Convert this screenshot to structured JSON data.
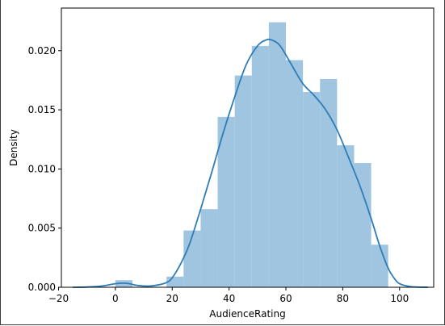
{
  "chart_data": {
    "type": "histogram",
    "xlabel": "AudienceRating",
    "ylabel": "Density",
    "xlim": [
      -19,
      112
    ],
    "ylim": [
      0,
      0.0236
    ],
    "xticks": [
      -20,
      0,
      20,
      40,
      60,
      80,
      100
    ],
    "xtick_labels": [
      "−20",
      "0",
      "20",
      "40",
      "60",
      "80",
      "100"
    ],
    "yticks": [
      0.0,
      0.005,
      0.01,
      0.015,
      0.02
    ],
    "ytick_labels": [
      "0.000",
      "0.005",
      "0.010",
      "0.015",
      "0.020"
    ],
    "grid": false,
    "bars": [
      {
        "x0": 0,
        "x1": 6,
        "density": 0.0006
      },
      {
        "x0": 6,
        "x1": 18,
        "density": 0.0
      },
      {
        "x0": 18,
        "x1": 24,
        "density": 0.0009
      },
      {
        "x0": 24,
        "x1": 30,
        "density": 0.0048
      },
      {
        "x0": 30,
        "x1": 36,
        "density": 0.0066
      },
      {
        "x0": 36,
        "x1": 42,
        "density": 0.0144
      },
      {
        "x0": 42,
        "x1": 48,
        "density": 0.0179
      },
      {
        "x0": 48,
        "x1": 54,
        "density": 0.0204
      },
      {
        "x0": 54,
        "x1": 60,
        "density": 0.0224
      },
      {
        "x0": 60,
        "x1": 66,
        "density": 0.0192
      },
      {
        "x0": 66,
        "x1": 72,
        "density": 0.0165
      },
      {
        "x0": 72,
        "x1": 78,
        "density": 0.0176
      },
      {
        "x0": 78,
        "x1": 84,
        "density": 0.012
      },
      {
        "x0": 84,
        "x1": 90,
        "density": 0.0105
      },
      {
        "x0": 90,
        "x1": 96,
        "density": 0.0036
      }
    ],
    "kde": {
      "x": [
        -15,
        -10,
        -5,
        0,
        3,
        5,
        8,
        12,
        15,
        18,
        20,
        23,
        26,
        30,
        34,
        38,
        42,
        46,
        50,
        53,
        55,
        58,
        62,
        66,
        70,
        74,
        78,
        82,
        86,
        90,
        93,
        96,
        98,
        100,
        104,
        110
      ],
      "y": [
        0.0,
        2e-05,
        0.0001,
        0.0003,
        0.00035,
        0.0003,
        0.00015,
        0.0001,
        0.0002,
        0.0004,
        0.0008,
        0.002,
        0.0036,
        0.0066,
        0.0098,
        0.0131,
        0.0161,
        0.0188,
        0.0204,
        0.0209,
        0.0209,
        0.0204,
        0.0188,
        0.0172,
        0.0162,
        0.015,
        0.0133,
        0.011,
        0.0086,
        0.0058,
        0.0035,
        0.0016,
        0.0008,
        0.0003,
        5e-05,
        0.0
      ]
    },
    "colors": {
      "bar": "#9fc5e0",
      "line": "#2f7db6",
      "axes": "#000000"
    }
  }
}
